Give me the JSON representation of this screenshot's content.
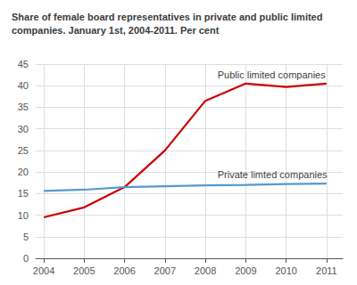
{
  "chart_data": {
    "type": "line",
    "title": "Share of female board representatives in private and public limited\ncompanies. January 1st, 2004-2011. Per cent",
    "x": [
      2004,
      2005,
      2006,
      2007,
      2008,
      2009,
      2010,
      2011
    ],
    "series": [
      {
        "name": "Public limited companies",
        "color": "#cc0000",
        "values": [
          9.5,
          11.8,
          16.5,
          25.0,
          36.5,
          40.5,
          39.7,
          40.5
        ]
      },
      {
        "name": "Private limted companies",
        "color": "#5599cc",
        "values": [
          15.6,
          15.9,
          16.5,
          16.7,
          16.9,
          17.0,
          17.2,
          17.3
        ]
      }
    ],
    "annotations": [
      {
        "text": "Public limited companies",
        "x": 2008.3,
        "y": 42.5
      },
      {
        "text": "Private limted companies",
        "x": 2008.3,
        "y": 19.5
      }
    ],
    "xlim": [
      2003.8,
      2011.4
    ],
    "xticks": [
      2004,
      2005,
      2006,
      2007,
      2008,
      2009,
      2010,
      2011
    ],
    "ylim": [
      0,
      45
    ],
    "yticks": [
      0,
      5,
      10,
      15,
      20,
      25,
      30,
      35,
      40,
      45
    ],
    "grid": true
  }
}
